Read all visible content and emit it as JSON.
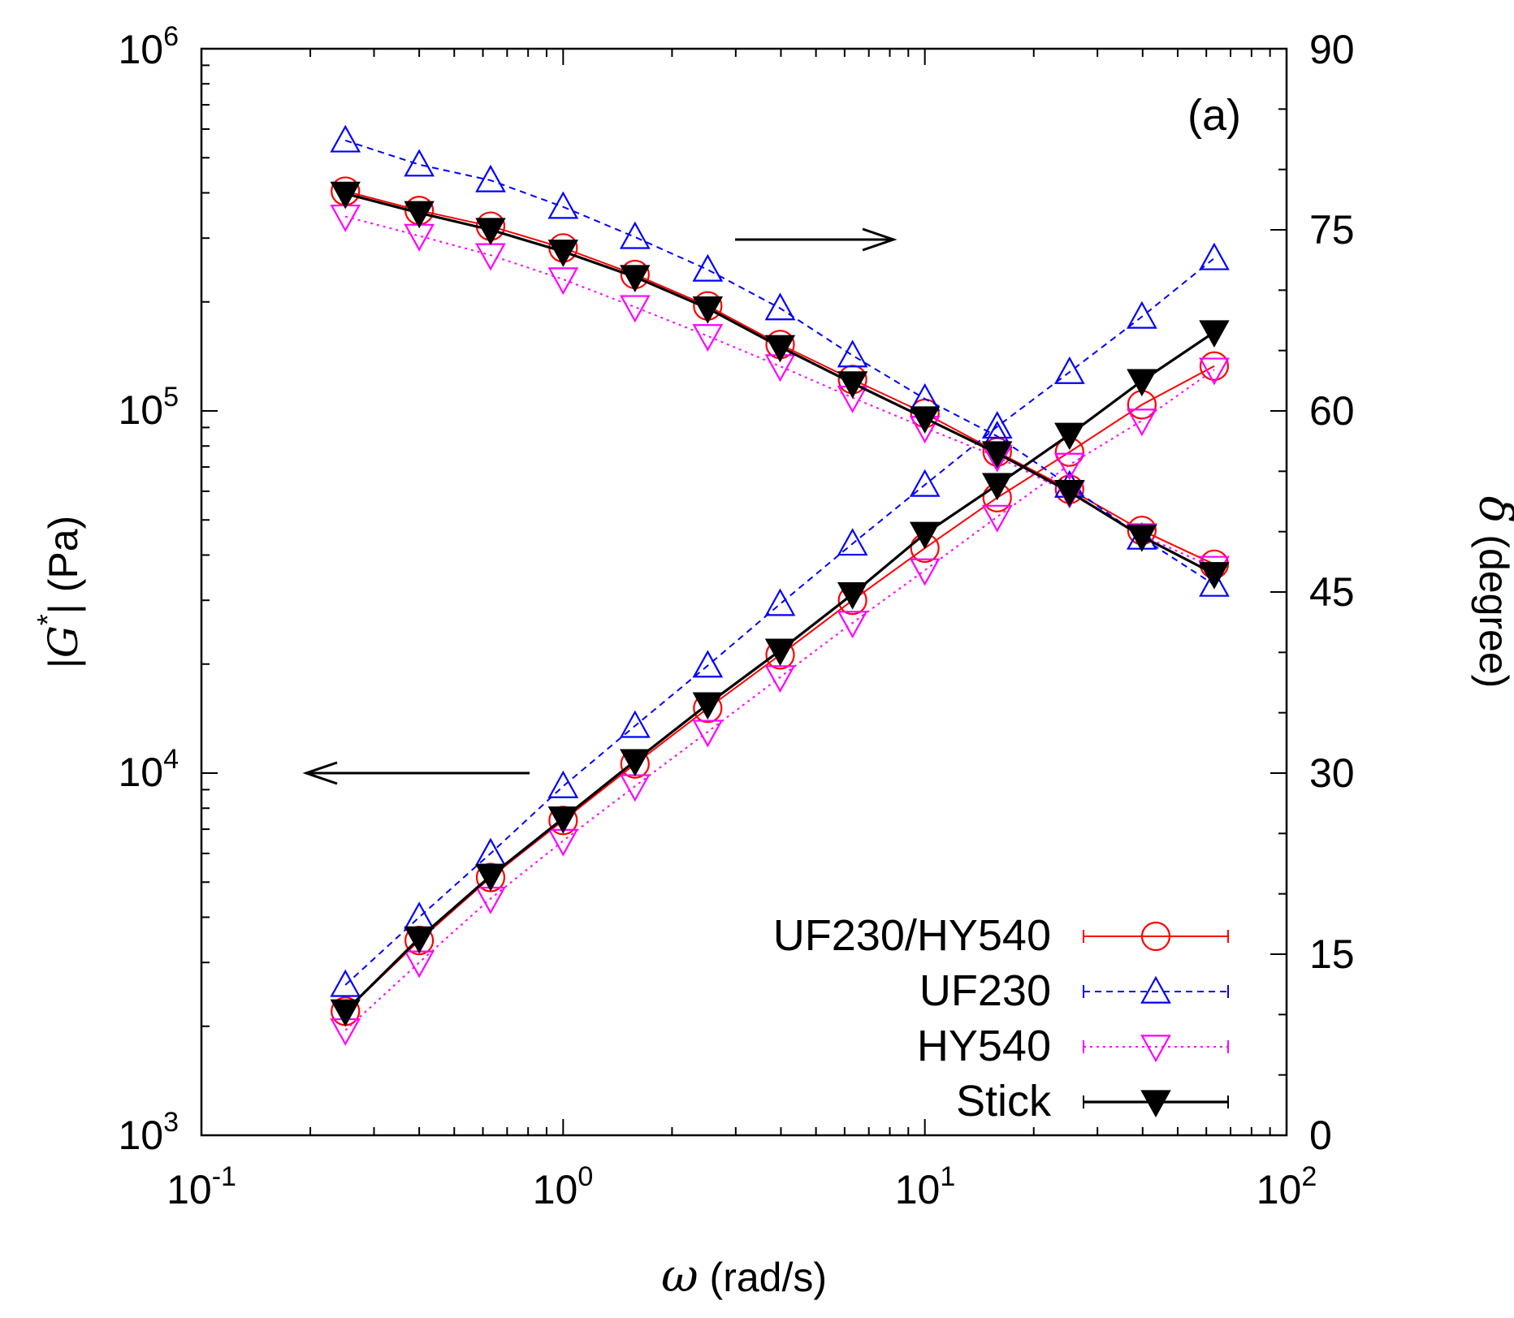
{
  "chart_data": {
    "type": "line",
    "panel_label": "(a)",
    "x_axis": {
      "scale": "log",
      "range": [
        0.1,
        100
      ],
      "tick_labels": [
        {
          "base": "10",
          "exp": "-1"
        },
        {
          "base": "10",
          "exp": "0"
        },
        {
          "base": "10",
          "exp": "1"
        },
        {
          "base": "10",
          "exp": "2"
        }
      ],
      "label_symbol": "ω",
      "label_unit": " (rad/s)"
    },
    "y_left": {
      "scale": "log",
      "range": [
        1000,
        1000000
      ],
      "tick_labels": [
        {
          "base": "10",
          "exp": "3"
        },
        {
          "base": "10",
          "exp": "4"
        },
        {
          "base": "10",
          "exp": "5"
        },
        {
          "base": "10",
          "exp": "6"
        }
      ],
      "label_pre": "|",
      "label_symbol": "G",
      "label_sup": "*",
      "label_post": "| (Pa)"
    },
    "y_right": {
      "scale": "linear",
      "range": [
        0,
        90
      ],
      "ticks": [
        0,
        15,
        30,
        45,
        60,
        75,
        90
      ],
      "tick_labels": [
        "0",
        "15",
        "30",
        "45",
        "60",
        "75",
        "90"
      ],
      "label_symbol": "δ",
      "label_unit": " (degree)"
    },
    "omega": [
      0.25,
      0.4,
      0.63,
      1.0,
      1.58,
      2.51,
      3.98,
      6.31,
      10.0,
      15.85,
      25.12,
      39.81,
      63.1
    ],
    "series": [
      {
        "name": "UF230/HY540",
        "color": "#ff0000",
        "marker": "circle-open",
        "dash": "",
        "G_star": [
          2200,
          3450,
          5150,
          7400,
          10600,
          15100,
          21200,
          30000,
          41800,
          57600,
          77000,
          104000,
          133000
        ],
        "delta": [
          78.2,
          76.6,
          75.3,
          73.5,
          71.3,
          68.7,
          65.5,
          62.6,
          59.8,
          56.6,
          53.5,
          50.1,
          47.3
        ]
      },
      {
        "name": "UF230",
        "color": "#0000ff",
        "marker": "triangle-up-open",
        "dash": "8,6",
        "G_star": [
          2600,
          4000,
          6000,
          9200,
          13500,
          19800,
          29300,
          43000,
          62500,
          90500,
          128000,
          182000,
          264000
        ],
        "delta": [
          82.4,
          80.4,
          79.1,
          76.9,
          74.4,
          71.7,
          68.5,
          64.6,
          61.0,
          57.9,
          53.8,
          49.5,
          45.6
        ]
      },
      {
        "name": "HY540",
        "color": "#ff00ff",
        "marker": "triangle-down-open",
        "dash": "3,5",
        "G_star": [
          1950,
          3000,
          4500,
          6500,
          9200,
          13000,
          18400,
          26000,
          36300,
          51000,
          71000,
          94000,
          130000
        ],
        "delta": [
          76.1,
          74.5,
          72.9,
          70.9,
          68.6,
          66.2,
          63.7,
          61.1,
          58.6,
          56.2,
          53.2,
          49.7,
          47.0
        ]
      },
      {
        "name": "Stick",
        "color": "#000000",
        "marker": "triangle-down-filled",
        "dash": "",
        "G_star": [
          2200,
          3500,
          5200,
          7500,
          10800,
          15500,
          21800,
          31200,
          45800,
          62500,
          86000,
          121000,
          165000
        ],
        "delta": [
          78.0,
          76.4,
          75.0,
          73.2,
          71.1,
          68.5,
          65.3,
          62.3,
          59.4,
          56.5,
          53.3,
          49.6,
          46.5
        ]
      }
    ],
    "annotations": [
      {
        "type": "arrow",
        "direction": "right",
        "meaning": "delta curves read on right axis"
      },
      {
        "type": "arrow",
        "direction": "left",
        "meaning": "|G*| curves read on left axis"
      }
    ],
    "legend_position": "bottom-right"
  }
}
